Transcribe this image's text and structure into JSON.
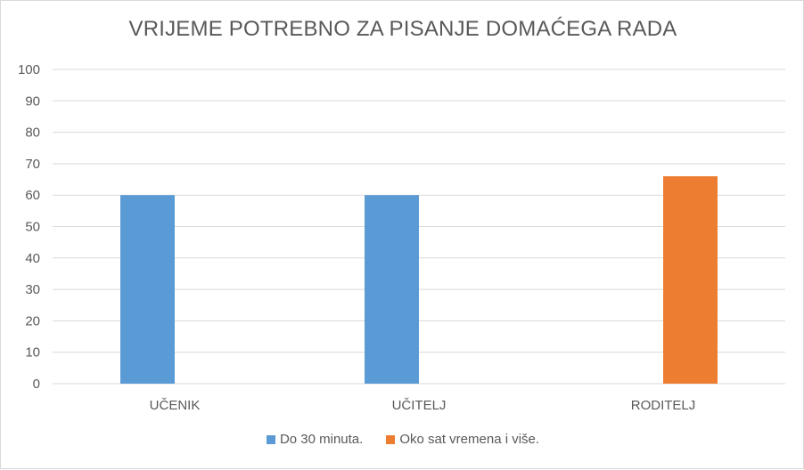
{
  "chart_data": {
    "type": "bar",
    "title": "VRIJEME POTREBNO ZA PISANJE DOMAĆEGA RADA",
    "categories": [
      "UČENIK",
      "UČITELJ",
      "RODITELJ"
    ],
    "series": [
      {
        "name": "Do 30 minuta.",
        "color": "#5b9bd5",
        "values": [
          60,
          60,
          0
        ]
      },
      {
        "name": "Oko sat vremena i više.",
        "color": "#ed7d31",
        "values": [
          0,
          0,
          66
        ]
      }
    ],
    "ylim": [
      0,
      100
    ],
    "yticks": [
      0,
      10,
      20,
      30,
      40,
      50,
      60,
      70,
      80,
      90,
      100
    ],
    "grid": true,
    "legend_position": "bottom"
  }
}
